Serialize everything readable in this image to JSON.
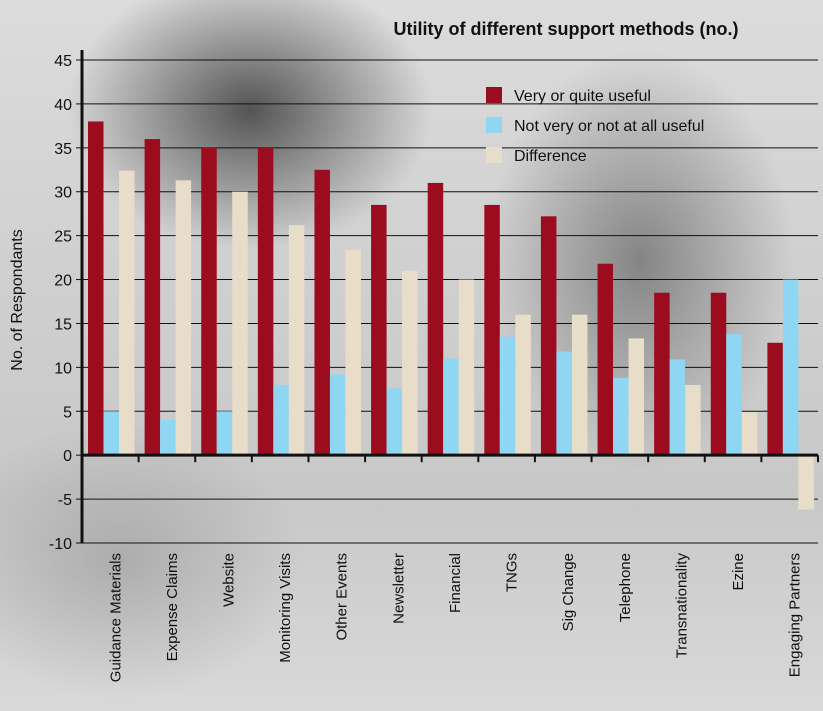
{
  "chart_data": {
    "type": "bar",
    "title": "Utility of different support methods (no.)",
    "ylabel": "No. of Respondants",
    "xlabel": "",
    "ylim": [
      -10,
      45
    ],
    "yticks": [
      -10,
      -5,
      0,
      5,
      10,
      15,
      20,
      25,
      30,
      35,
      40,
      45
    ],
    "grid": true,
    "legend_position": "top-right",
    "categories": [
      "Guidance Materials",
      "Expense Claims",
      "Website",
      "Monitoring Visits",
      "Other Events",
      "Newsletter",
      "Financial",
      "TNGs",
      "Sig Change",
      "Telephone",
      "Transnationality",
      "Ezine",
      "Engaging Partners"
    ],
    "series": [
      {
        "name": "Very or quite useful",
        "color": "#9b0d1e",
        "values": [
          38,
          36,
          35,
          35,
          32.5,
          28.5,
          31,
          28.5,
          27.2,
          21.8,
          18.5,
          18.5,
          12.8
        ]
      },
      {
        "name": "Not very or not at all useful",
        "color": "#8fd6f3",
        "values": [
          5,
          4,
          5,
          8,
          9.2,
          7.6,
          11,
          13.5,
          11.8,
          8.8,
          10.9,
          13.8,
          20
        ]
      },
      {
        "name": "Difference",
        "color": "#e8ddc8",
        "values": [
          32.4,
          31.3,
          30,
          26.2,
          23.4,
          21,
          20,
          16,
          16,
          13.3,
          8,
          4.9,
          -6.2
        ]
      }
    ]
  }
}
